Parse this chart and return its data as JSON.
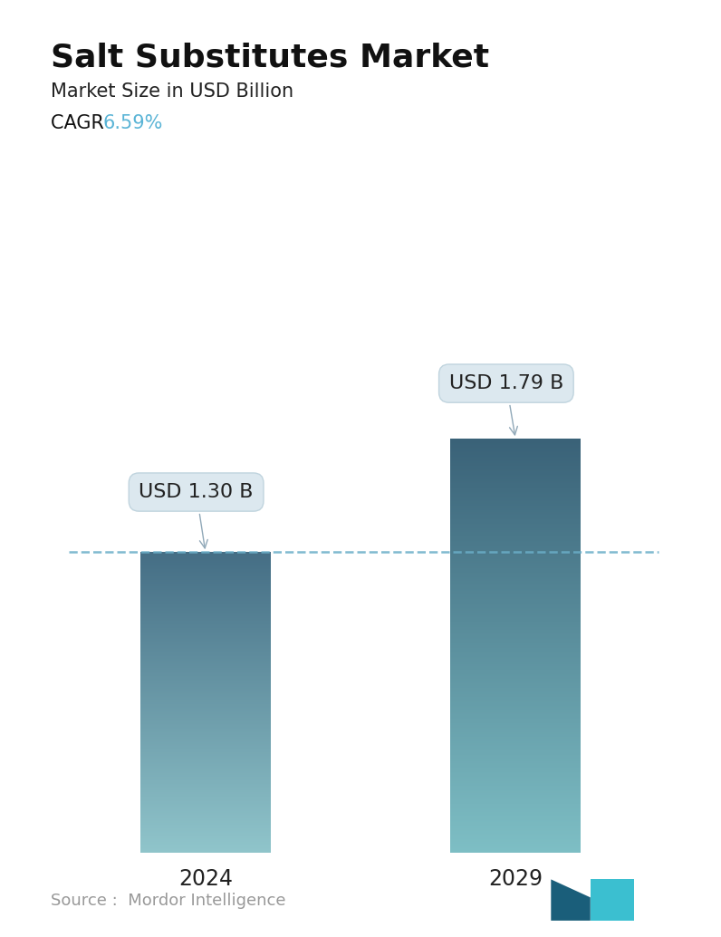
{
  "title": "Salt Substitutes Market",
  "subtitle": "Market Size in USD Billion",
  "cagr_label": "CAGR ",
  "cagr_value": "6.59%",
  "cagr_color": "#5ab4d6",
  "categories": [
    "2024",
    "2029"
  ],
  "values": [
    1.3,
    1.79
  ],
  "bar_labels": [
    "USD 1.30 B",
    "USD 1.79 B"
  ],
  "bar_top_colors": [
    "#456e85",
    "#3a6278"
  ],
  "bar_bottom_colors": [
    "#90c5cb",
    "#7ebfc5"
  ],
  "dashed_line_value": 1.3,
  "dashed_line_color": "#6aaec8",
  "background_color": "#ffffff",
  "title_fontsize": 26,
  "subtitle_fontsize": 15,
  "cagr_fontsize": 15,
  "tick_label_fontsize": 17,
  "annotation_fontsize": 16,
  "source_color": "#999999",
  "source_fontsize": 13,
  "ylim": [
    0,
    2.35
  ],
  "bar_width": 0.42,
  "x_positions": [
    0,
    1
  ],
  "xlim": [
    -0.5,
    1.5
  ]
}
